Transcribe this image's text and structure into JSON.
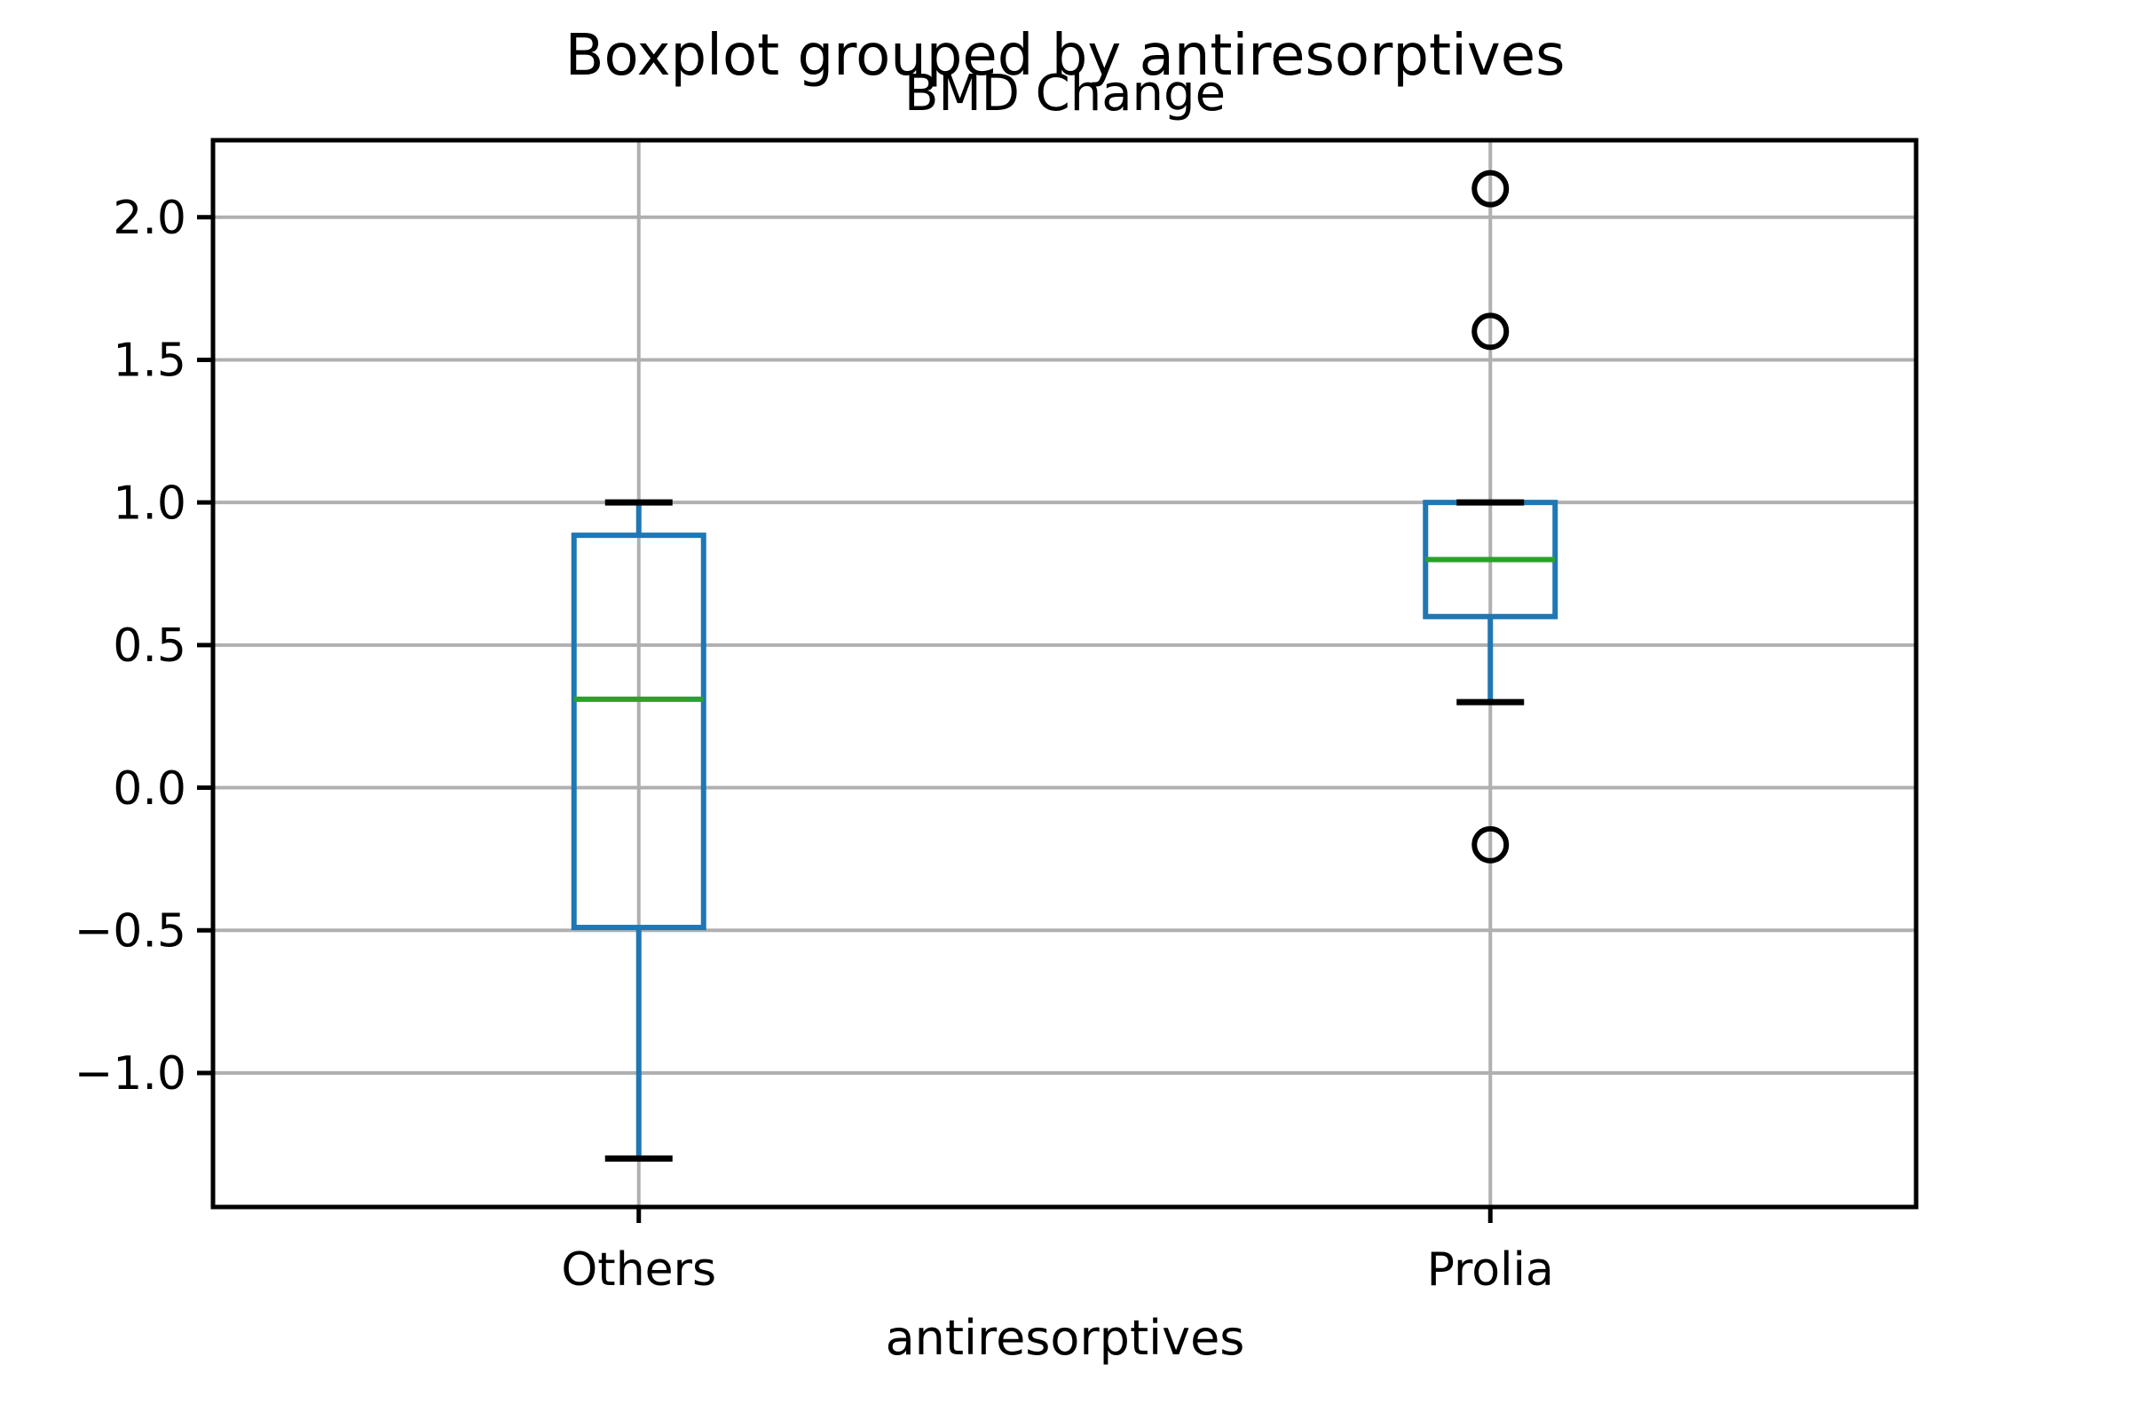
{
  "figure": {
    "background_color": "#ffffff"
  },
  "chart_data": {
    "type": "boxplot",
    "suptitle": "Boxplot grouped by antiresorptives",
    "title": "BMD Change",
    "xlabel": "antiresorptives",
    "ylabel": "",
    "categories": [
      "Others",
      "Prolia"
    ],
    "ylim": [
      -1.47,
      2.27
    ],
    "yticks": [
      2.0,
      1.5,
      1.0,
      0.5,
      0.0,
      -0.5,
      -1.0
    ],
    "ytick_labels": [
      "2.0",
      "1.5",
      "1.0",
      "0.5",
      "0.0",
      "−0.5",
      "−1.0"
    ],
    "grid": true,
    "legend": "none",
    "series": [
      {
        "name": "Others",
        "whisker_low": -1.3,
        "q1": -0.49,
        "median": 0.31,
        "q3": 0.885,
        "whisker_high": 1.0,
        "outliers": []
      },
      {
        "name": "Prolia",
        "whisker_low": 0.3,
        "q1": 0.6,
        "median": 0.8,
        "q3": 1.0,
        "whisker_high": 1.0,
        "outliers": [
          2.1,
          1.6,
          -0.2
        ]
      }
    ],
    "colors": {
      "box": "#1f77b4",
      "whisker": "#1f77b4",
      "median": "#2ca02c",
      "cap": "#000000",
      "flier": "#000000",
      "grid": "#b0b0b0",
      "spine": "#000000",
      "text": "#000000",
      "background": "#ffffff"
    }
  }
}
